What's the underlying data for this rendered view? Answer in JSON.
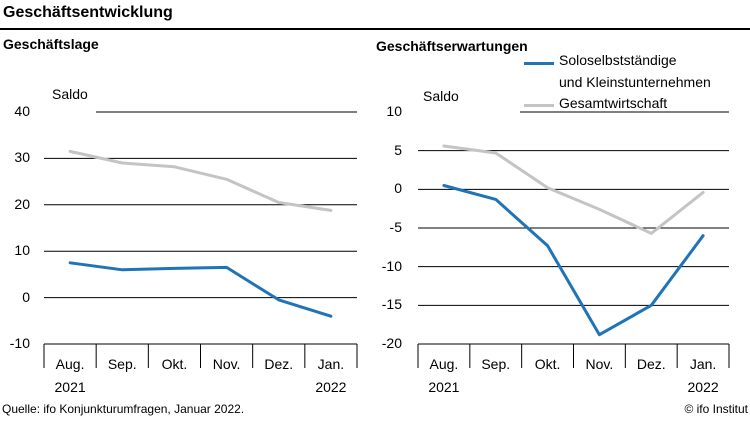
{
  "page": {
    "title": "Geschäftsentwicklung",
    "source": "Quelle: ifo Konjunkturumfragen, Januar 2022.",
    "copyright": "© ifo Institut"
  },
  "colors": {
    "series_blue": "#1f73b7",
    "series_gray": "#c4c4c4",
    "grid": "#000000"
  },
  "chart_data": [
    {
      "type": "line",
      "title": "Geschäftslage",
      "ylabel": "Saldo",
      "ylim": [
        -10,
        40
      ],
      "yticks": [
        "40",
        "30",
        "20",
        "10",
        "0",
        "-10"
      ],
      "categories": [
        {
          "line1": "Aug.",
          "line2": "2021"
        },
        {
          "line1": "Sep.",
          "line2": ""
        },
        {
          "line1": "Okt.",
          "line2": ""
        },
        {
          "line1": "Nov.",
          "line2": ""
        },
        {
          "line1": "Dez.",
          "line2": ""
        },
        {
          "line1": "Jan.",
          "line2": "2022"
        }
      ],
      "series": [
        {
          "name": "Soloselbstständige und Kleinstunternehmen",
          "color": "#1f73b7",
          "values": [
            7.5,
            6,
            6.3,
            6.5,
            -0.5,
            -4
          ]
        },
        {
          "name": "Gesamtwirtschaft",
          "color": "#c4c4c4",
          "values": [
            31.5,
            29,
            28.2,
            25.5,
            20.5,
            18.8
          ]
        }
      ]
    },
    {
      "type": "line",
      "title": "Geschäftserwartungen",
      "ylabel": "Saldo",
      "ylim": [
        -20,
        10
      ],
      "yticks": [
        "10",
        "5",
        "0",
        "-5",
        "-10",
        "-15",
        "-20"
      ],
      "categories": [
        {
          "line1": "Aug.",
          "line2": "2021"
        },
        {
          "line1": "Sep.",
          "line2": ""
        },
        {
          "line1": "Okt.",
          "line2": ""
        },
        {
          "line1": "Nov.",
          "line2": ""
        },
        {
          "line1": "Dez.",
          "line2": ""
        },
        {
          "line1": "Jan.",
          "line2": "2022"
        }
      ],
      "legend": [
        {
          "label_line1": "Soloselbstständige",
          "label_line2": "und Kleinstunternehmen",
          "color": "#1f73b7"
        },
        {
          "label_line1": "Gesamtwirtschaft",
          "label_line2": "",
          "color": "#c4c4c4"
        }
      ],
      "series": [
        {
          "name": "Soloselbstständige und Kleinstunternehmen",
          "color": "#1f73b7",
          "values": [
            0.5,
            -1.3,
            -7.3,
            -18.8,
            -15,
            -6
          ]
        },
        {
          "name": "Gesamtwirtschaft",
          "color": "#c4c4c4",
          "values": [
            5.6,
            4.7,
            0.2,
            -2.6,
            -5.7,
            -0.4
          ]
        }
      ]
    }
  ]
}
